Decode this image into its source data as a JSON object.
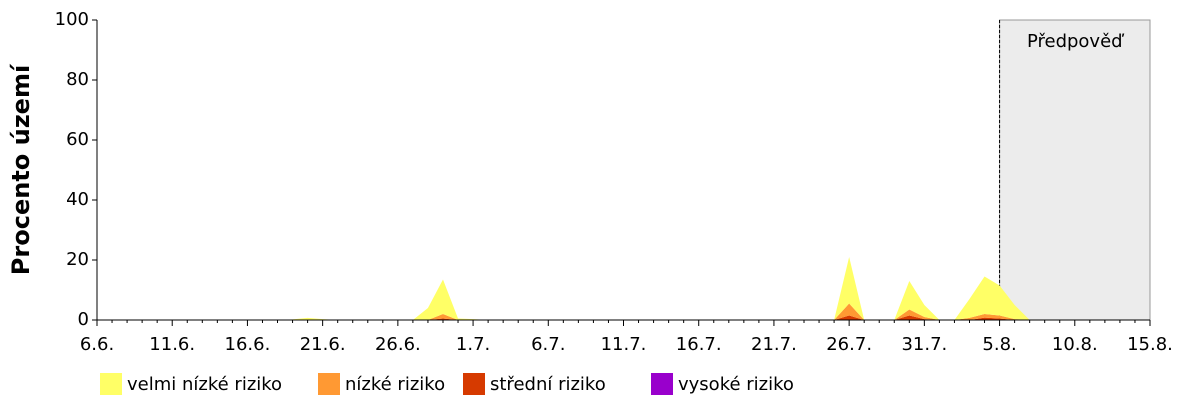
{
  "chart_data": {
    "type": "stacked_area",
    "ylabel": "Procento území",
    "categories": [
      "6.6.",
      null,
      null,
      null,
      null,
      "11.6.",
      null,
      null,
      null,
      null,
      "16.6.",
      null,
      null,
      null,
      null,
      "21.6.",
      null,
      null,
      null,
      null,
      "26.6.",
      null,
      null,
      null,
      null,
      "1.7.",
      null,
      null,
      null,
      null,
      "6.7.",
      null,
      null,
      null,
      null,
      "11.7.",
      null,
      null,
      null,
      null,
      "16.7.",
      null,
      null,
      null,
      null,
      "21.7.",
      null,
      null,
      null,
      null,
      "26.7.",
      null,
      null,
      null,
      null,
      "31.7.",
      null,
      null,
      null,
      null,
      "5.8.",
      null,
      null,
      null,
      null,
      "10.8.",
      null,
      null,
      null,
      null,
      "15.8."
    ],
    "series": [
      {
        "name": "velmi nízké riziko",
        "color": "#ffff66",
        "values": [
          0,
          0,
          0,
          0,
          0,
          0,
          0,
          0,
          0,
          0,
          0,
          0,
          0,
          0.2,
          0.7,
          0.3,
          0,
          0,
          0,
          0,
          0,
          0,
          4,
          11.5,
          0.5,
          0.3,
          0,
          0,
          0,
          0,
          0,
          0,
          0,
          0,
          0,
          0,
          0,
          0,
          0,
          0,
          0,
          0,
          0,
          0,
          0,
          0,
          0,
          0,
          0,
          0,
          15.5,
          0,
          0,
          0,
          9.5,
          4,
          0,
          0,
          6.3,
          12.5,
          10,
          4.7,
          0,
          0,
          0,
          0,
          0,
          0,
          0,
          0,
          0
        ]
      },
      {
        "name": "nízké riziko",
        "color": "#ff9933",
        "values": [
          0,
          0,
          0,
          0,
          0,
          0,
          0,
          0,
          0,
          0,
          0,
          0,
          0,
          0,
          0,
          0,
          0,
          0,
          0,
          0,
          0,
          0,
          0,
          1.5,
          0,
          0,
          0,
          0,
          0,
          0,
          0,
          0,
          0,
          0,
          0,
          0,
          0,
          0,
          0,
          0,
          0,
          0,
          0,
          0,
          0,
          0,
          0,
          0,
          0,
          0,
          4,
          0,
          0,
          0,
          2,
          0.7,
          0,
          0,
          0.7,
          1.2,
          1,
          0.3,
          0,
          0,
          0,
          0,
          0,
          0,
          0,
          0,
          0
        ]
      },
      {
        "name": "střední riziko",
        "color": "#d63a00",
        "values": [
          0,
          0,
          0,
          0,
          0,
          0,
          0,
          0,
          0,
          0,
          0,
          0,
          0,
          0,
          0,
          0,
          0,
          0,
          0,
          0,
          0,
          0,
          0,
          0.5,
          0,
          0,
          0,
          0,
          0,
          0,
          0,
          0,
          0,
          0,
          0,
          0,
          0,
          0,
          0,
          0,
          0,
          0,
          0,
          0,
          0,
          0,
          0,
          0,
          0,
          0,
          1.5,
          0,
          0,
          0,
          1.5,
          0.3,
          0,
          0,
          0,
          0.8,
          0.5,
          0,
          0,
          0,
          0,
          0,
          0,
          0,
          0,
          0,
          0
        ]
      },
      {
        "name": "vysoké riziko",
        "color": "#9900cc",
        "values": [
          0,
          0,
          0,
          0,
          0,
          0,
          0,
          0,
          0,
          0,
          0,
          0,
          0,
          0,
          0,
          0,
          0,
          0,
          0,
          0,
          0,
          0,
          0,
          0,
          0,
          0,
          0,
          0,
          0,
          0,
          0,
          0,
          0,
          0,
          0,
          0,
          0,
          0,
          0,
          0,
          0,
          0,
          0,
          0,
          0,
          0,
          0,
          0,
          0,
          0,
          0,
          0,
          0,
          0,
          0,
          0,
          0,
          0,
          0,
          0,
          0,
          0,
          0,
          0,
          0,
          0,
          0,
          0,
          0,
          0,
          0
        ]
      }
    ],
    "ylim": [
      0,
      100
    ],
    "yticks": [
      0,
      20,
      40,
      60,
      80,
      100
    ],
    "forecast": {
      "label": "Předpověď",
      "start": 60
    }
  }
}
